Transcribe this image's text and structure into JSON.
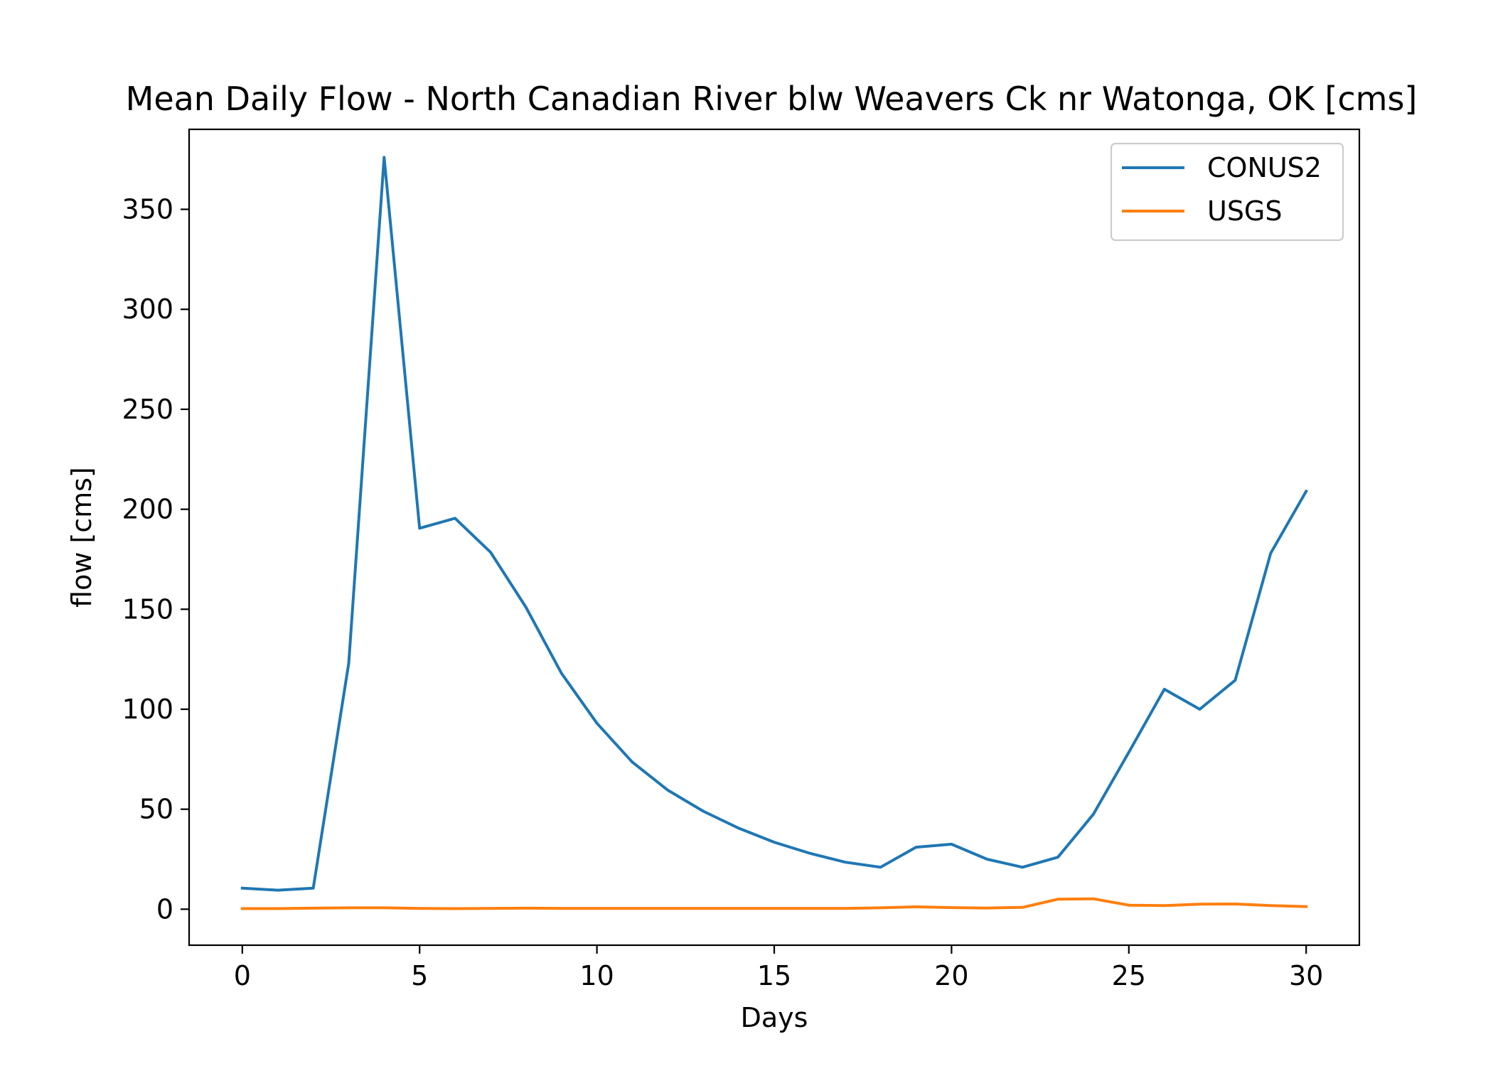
{
  "chart_data": {
    "type": "line",
    "title": "Mean Daily Flow - North Canadian River blw Weavers Ck nr Watonga, OK [cms]",
    "xlabel": "Days",
    "ylabel": "flow [cms]",
    "xlim": [
      -1.5,
      31.5
    ],
    "ylim": [
      -18,
      390
    ],
    "xticks": [
      0,
      5,
      10,
      15,
      20,
      25,
      30
    ],
    "yticks": [
      0,
      50,
      100,
      150,
      200,
      250,
      300,
      350
    ],
    "grid": false,
    "legend_position": "top-right",
    "x": [
      0,
      1,
      2,
      3,
      4,
      5,
      6,
      7,
      8,
      9,
      10,
      11,
      12,
      13,
      14,
      15,
      16,
      17,
      18,
      19,
      20,
      21,
      22,
      23,
      24,
      25,
      26,
      27,
      28,
      29,
      30
    ],
    "series": [
      {
        "name": "CONUS2",
        "color": "#1f77b4",
        "values": [
          10.5,
          9.5,
          10.5,
          123,
          376,
          190.5,
          195.5,
          178.5,
          151,
          118,
          93,
          73.5,
          59.5,
          49,
          40.5,
          33.5,
          28,
          23.5,
          21,
          31,
          32.5,
          25,
          21,
          26,
          47.5,
          78.5,
          110,
          100,
          114.5,
          178,
          209
        ]
      },
      {
        "name": "USGS",
        "color": "#ff7f0e",
        "values": [
          0.3,
          0.3,
          0.5,
          0.7,
          0.7,
          0.4,
          0.3,
          0.4,
          0.5,
          0.4,
          0.4,
          0.4,
          0.4,
          0.4,
          0.4,
          0.4,
          0.4,
          0.4,
          0.7,
          1.2,
          0.8,
          0.6,
          0.9,
          5.0,
          5.2,
          2.0,
          1.8,
          2.5,
          2.6,
          1.8,
          1.3
        ]
      }
    ]
  }
}
